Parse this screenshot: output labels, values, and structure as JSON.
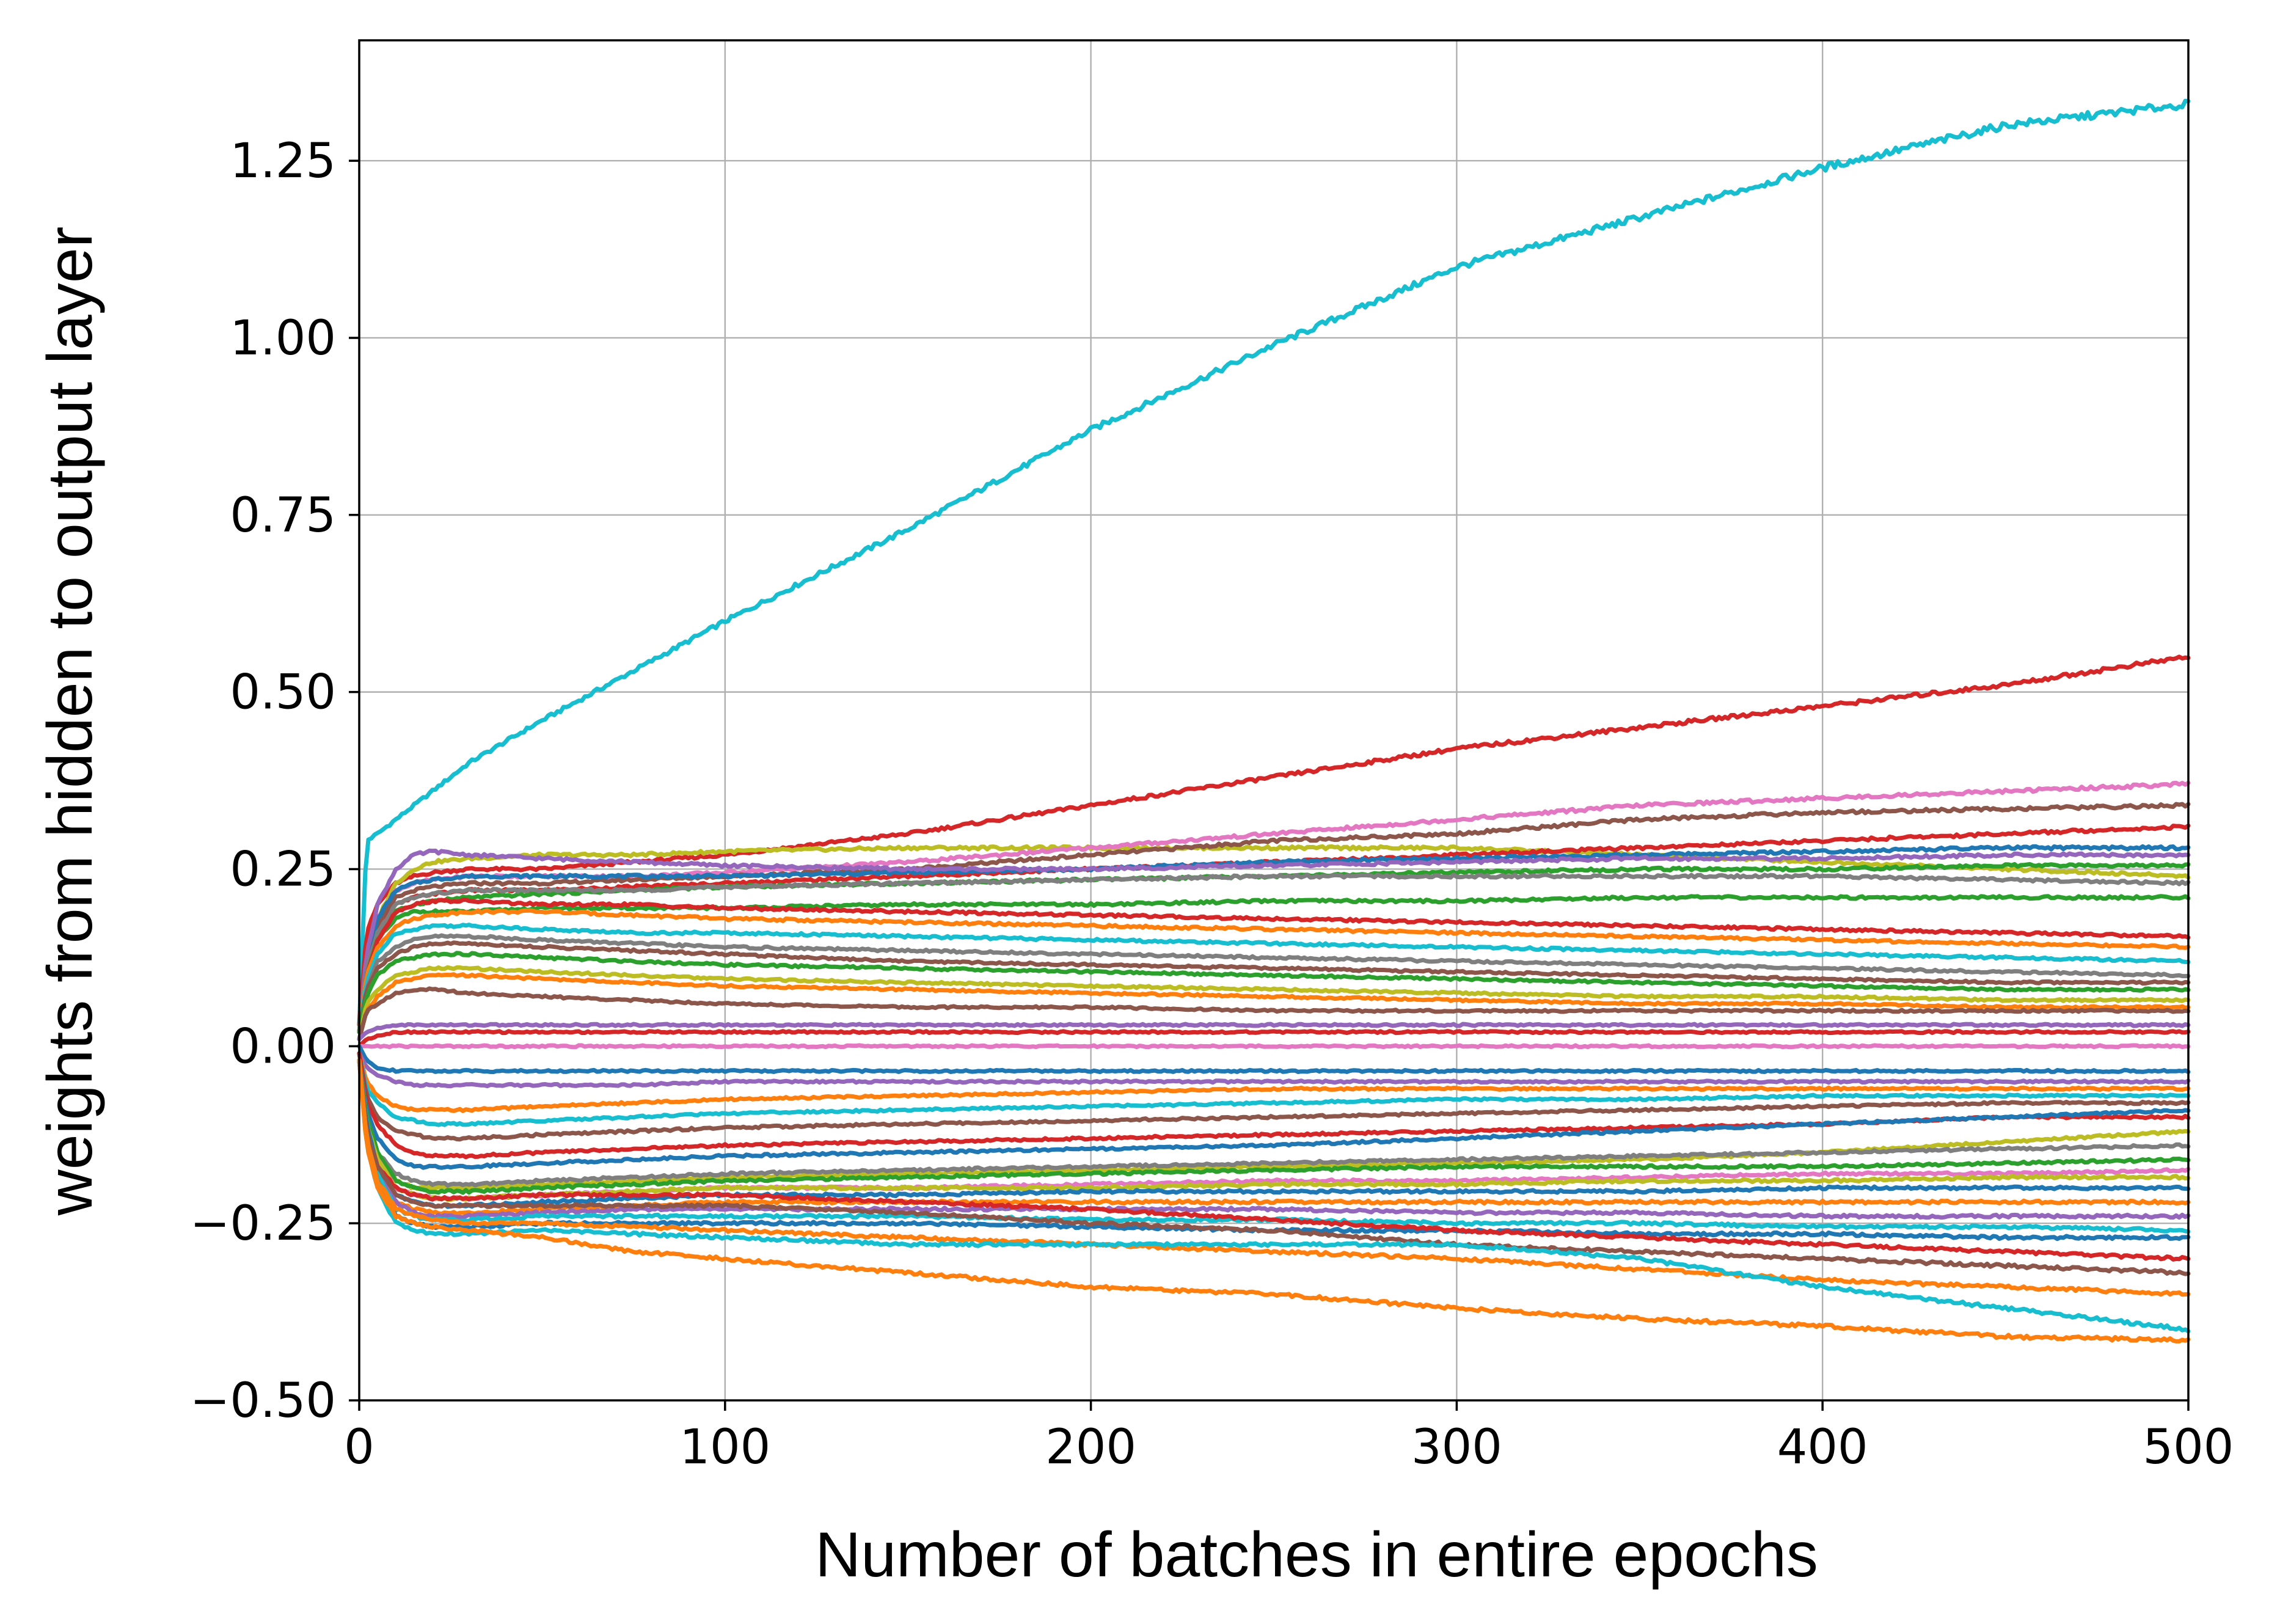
{
  "chart_data": {
    "type": "line",
    "title": "",
    "xlabel": "Number of batches in entire epochs",
    "ylabel": "weights from hidden to output layer",
    "xlim": [
      0,
      500
    ],
    "ylim": [
      -0.5,
      1.42
    ],
    "xticks": [
      0,
      100,
      200,
      300,
      400,
      500
    ],
    "xtick_labels": [
      "0",
      "100",
      "200",
      "300",
      "400",
      "500"
    ],
    "yticks": [
      -0.5,
      -0.25,
      0.0,
      0.25,
      0.5,
      0.75,
      1.0,
      1.25
    ],
    "ytick_labels": [
      "−0.50",
      "−0.25",
      "0.00",
      "0.25",
      "0.50",
      "0.75",
      "1.00",
      "1.25"
    ],
    "grid": true,
    "legend": "none",
    "x": [
      0,
      2,
      5,
      10,
      15,
      20,
      30,
      50,
      75,
      100,
      150,
      200,
      250,
      300,
      350,
      400,
      450,
      500
    ],
    "series": [
      {
        "color": "#17becf",
        "values": [
          0.03,
          0.29,
          0.3,
          0.32,
          0.34,
          0.36,
          0.4,
          0.46,
          0.53,
          0.6,
          0.73,
          0.87,
          0.99,
          1.1,
          1.17,
          1.24,
          1.3,
          1.33
        ]
      },
      {
        "color": "#d62728",
        "values": [
          0.03,
          0.16,
          0.2,
          0.23,
          0.24,
          0.245,
          0.25,
          0.25,
          0.26,
          0.27,
          0.3,
          0.34,
          0.38,
          0.42,
          0.45,
          0.48,
          0.51,
          0.55
        ]
      },
      {
        "color": "#bcbd22",
        "values": [
          0.02,
          0.12,
          0.18,
          0.23,
          0.25,
          0.26,
          0.265,
          0.27,
          0.27,
          0.275,
          0.28,
          0.28,
          0.28,
          0.28,
          0.27,
          0.26,
          0.25,
          0.24
        ]
      },
      {
        "color": "#e377c2",
        "values": [
          0.02,
          0.12,
          0.18,
          0.22,
          0.23,
          0.235,
          0.24,
          0.24,
          0.24,
          0.245,
          0.26,
          0.28,
          0.3,
          0.32,
          0.34,
          0.35,
          0.36,
          0.37
        ]
      },
      {
        "color": "#8c564b",
        "values": [
          0.02,
          0.11,
          0.17,
          0.21,
          0.22,
          0.225,
          0.23,
          0.23,
          0.235,
          0.24,
          0.25,
          0.27,
          0.29,
          0.3,
          0.32,
          0.33,
          0.335,
          0.34
        ]
      },
      {
        "color": "#d62728",
        "values": [
          0.02,
          0.11,
          0.16,
          0.2,
          0.21,
          0.215,
          0.22,
          0.22,
          0.225,
          0.23,
          0.24,
          0.25,
          0.26,
          0.27,
          0.28,
          0.29,
          0.3,
          0.31
        ]
      },
      {
        "color": "#1f77b4",
        "values": [
          0.02,
          0.12,
          0.18,
          0.22,
          0.23,
          0.235,
          0.24,
          0.24,
          0.24,
          0.24,
          0.245,
          0.25,
          0.26,
          0.265,
          0.27,
          0.275,
          0.28,
          0.28
        ]
      },
      {
        "color": "#9467bd",
        "values": [
          0.02,
          0.13,
          0.2,
          0.25,
          0.27,
          0.275,
          0.27,
          0.265,
          0.26,
          0.255,
          0.25,
          0.25,
          0.255,
          0.26,
          0.265,
          0.265,
          0.27,
          0.27
        ]
      },
      {
        "color": "#2ca02c",
        "values": [
          0.02,
          0.11,
          0.16,
          0.19,
          0.2,
          0.205,
          0.21,
          0.215,
          0.22,
          0.225,
          0.23,
          0.235,
          0.24,
          0.245,
          0.25,
          0.25,
          0.255,
          0.255
        ]
      },
      {
        "color": "#7f7f7f",
        "values": [
          0.02,
          0.11,
          0.16,
          0.2,
          0.21,
          0.215,
          0.22,
          0.22,
          0.22,
          0.225,
          0.23,
          0.235,
          0.24,
          0.24,
          0.24,
          0.24,
          0.235,
          0.23
        ]
      },
      {
        "color": "#2ca02c",
        "values": [
          0.02,
          0.1,
          0.15,
          0.18,
          0.19,
          0.19,
          0.19,
          0.195,
          0.195,
          0.195,
          0.2,
          0.2,
          0.205,
          0.205,
          0.21,
          0.21,
          0.21,
          0.21
        ]
      },
      {
        "color": "#d62728",
        "values": [
          0.02,
          0.1,
          0.15,
          0.19,
          0.2,
          0.205,
          0.205,
          0.2,
          0.2,
          0.195,
          0.19,
          0.185,
          0.18,
          0.175,
          0.17,
          0.165,
          0.16,
          0.155
        ]
      },
      {
        "color": "#ff7f0e",
        "values": [
          0.02,
          0.1,
          0.14,
          0.17,
          0.18,
          0.185,
          0.19,
          0.19,
          0.185,
          0.18,
          0.175,
          0.17,
          0.165,
          0.16,
          0.155,
          0.15,
          0.145,
          0.14
        ]
      },
      {
        "color": "#17becf",
        "values": [
          0.02,
          0.09,
          0.13,
          0.16,
          0.165,
          0.17,
          0.17,
          0.165,
          0.16,
          0.16,
          0.155,
          0.15,
          0.145,
          0.14,
          0.135,
          0.13,
          0.125,
          0.12
        ]
      },
      {
        "color": "#7f7f7f",
        "values": [
          0.02,
          0.08,
          0.12,
          0.14,
          0.15,
          0.155,
          0.155,
          0.15,
          0.145,
          0.14,
          0.135,
          0.13,
          0.125,
          0.12,
          0.115,
          0.11,
          0.105,
          0.1
        ]
      },
      {
        "color": "#8c564b",
        "values": [
          0.02,
          0.08,
          0.11,
          0.13,
          0.14,
          0.145,
          0.145,
          0.14,
          0.135,
          0.13,
          0.12,
          0.115,
          0.11,
          0.105,
          0.1,
          0.095,
          0.09,
          0.09
        ]
      },
      {
        "color": "#2ca02c",
        "values": [
          0.02,
          0.07,
          0.1,
          0.12,
          0.125,
          0.13,
          0.13,
          0.125,
          0.12,
          0.115,
          0.11,
          0.105,
          0.1,
          0.095,
          0.09,
          0.085,
          0.08,
          0.08
        ]
      },
      {
        "color": "#bcbd22",
        "values": [
          0.01,
          0.06,
          0.08,
          0.1,
          0.105,
          0.11,
          0.11,
          0.105,
          0.1,
          0.095,
          0.09,
          0.085,
          0.08,
          0.075,
          0.07,
          0.07,
          0.065,
          0.065
        ]
      },
      {
        "color": "#ff7f0e",
        "values": [
          0.01,
          0.05,
          0.07,
          0.09,
          0.095,
          0.1,
          0.1,
          0.095,
          0.09,
          0.085,
          0.08,
          0.075,
          0.07,
          0.065,
          0.06,
          0.06,
          0.055,
          0.055
        ]
      },
      {
        "color": "#8c564b",
        "values": [
          0.01,
          0.05,
          0.06,
          0.075,
          0.08,
          0.08,
          0.075,
          0.07,
          0.065,
          0.06,
          0.055,
          0.055,
          0.05,
          0.05,
          0.05,
          0.05,
          0.05,
          0.05
        ]
      },
      {
        "color": "#9467bd",
        "values": [
          0.01,
          0.02,
          0.025,
          0.03,
          0.03,
          0.03,
          0.03,
          0.03,
          0.03,
          0.03,
          0.03,
          0.03,
          0.03,
          0.03,
          0.03,
          0.03,
          0.03,
          0.03
        ]
      },
      {
        "color": "#d62728",
        "values": [
          0.0,
          0.01,
          0.015,
          0.02,
          0.02,
          0.02,
          0.02,
          0.02,
          0.02,
          0.02,
          0.02,
          0.02,
          0.02,
          0.02,
          0.02,
          0.02,
          0.02,
          0.02
        ]
      },
      {
        "color": "#e377c2",
        "values": [
          0.0,
          0.0,
          0.0,
          0.0,
          0.0,
          0.0,
          0.0,
          0.0,
          0.0,
          0.0,
          0.0,
          0.0,
          0.0,
          0.0,
          0.0,
          0.0,
          0.0,
          0.0
        ]
      },
      {
        "color": "#1f77b4",
        "values": [
          0.0,
          -0.02,
          -0.03,
          -0.035,
          -0.035,
          -0.035,
          -0.035,
          -0.035,
          -0.035,
          -0.035,
          -0.035,
          -0.035,
          -0.035,
          -0.035,
          -0.035,
          -0.035,
          -0.035,
          -0.035
        ]
      },
      {
        "color": "#9467bd",
        "values": [
          -0.01,
          -0.03,
          -0.04,
          -0.05,
          -0.055,
          -0.055,
          -0.055,
          -0.055,
          -0.055,
          -0.05,
          -0.05,
          -0.05,
          -0.05,
          -0.05,
          -0.05,
          -0.05,
          -0.05,
          -0.05
        ]
      },
      {
        "color": "#ff7f0e",
        "values": [
          -0.01,
          -0.05,
          -0.07,
          -0.085,
          -0.09,
          -0.09,
          -0.09,
          -0.085,
          -0.08,
          -0.075,
          -0.07,
          -0.065,
          -0.06,
          -0.06,
          -0.06,
          -0.06,
          -0.06,
          -0.06
        ]
      },
      {
        "color": "#17becf",
        "values": [
          -0.01,
          -0.06,
          -0.08,
          -0.1,
          -0.105,
          -0.11,
          -0.11,
          -0.105,
          -0.1,
          -0.095,
          -0.09,
          -0.085,
          -0.08,
          -0.075,
          -0.075,
          -0.07,
          -0.07,
          -0.07
        ]
      },
      {
        "color": "#8c564b",
        "values": [
          -0.01,
          -0.07,
          -0.1,
          -0.12,
          -0.125,
          -0.13,
          -0.13,
          -0.125,
          -0.12,
          -0.115,
          -0.11,
          -0.105,
          -0.1,
          -0.095,
          -0.09,
          -0.085,
          -0.08,
          -0.08
        ]
      },
      {
        "color": "#d62728",
        "values": [
          -0.01,
          -0.08,
          -0.11,
          -0.14,
          -0.15,
          -0.155,
          -0.155,
          -0.15,
          -0.145,
          -0.14,
          -0.135,
          -0.13,
          -0.125,
          -0.12,
          -0.115,
          -0.11,
          -0.1,
          -0.1
        ]
      },
      {
        "color": "#1f77b4",
        "values": [
          -0.02,
          -0.09,
          -0.13,
          -0.16,
          -0.17,
          -0.17,
          -0.17,
          -0.165,
          -0.16,
          -0.155,
          -0.15,
          -0.145,
          -0.14,
          -0.13,
          -0.12,
          -0.11,
          -0.1,
          -0.09
        ]
      },
      {
        "color": "#bcbd22",
        "values": [
          -0.02,
          -0.1,
          -0.15,
          -0.19,
          -0.2,
          -0.2,
          -0.2,
          -0.195,
          -0.19,
          -0.185,
          -0.18,
          -0.175,
          -0.17,
          -0.165,
          -0.16,
          -0.15,
          -0.135,
          -0.12
        ]
      },
      {
        "color": "#7f7f7f",
        "values": [
          -0.02,
          -0.1,
          -0.15,
          -0.18,
          -0.19,
          -0.195,
          -0.195,
          -0.19,
          -0.185,
          -0.18,
          -0.175,
          -0.17,
          -0.165,
          -0.16,
          -0.155,
          -0.15,
          -0.145,
          -0.14
        ]
      },
      {
        "color": "#2ca02c",
        "values": [
          -0.02,
          -0.1,
          -0.15,
          -0.19,
          -0.2,
          -0.205,
          -0.205,
          -0.2,
          -0.195,
          -0.19,
          -0.185,
          -0.18,
          -0.175,
          -0.17,
          -0.17,
          -0.17,
          -0.165,
          -0.16
        ]
      },
      {
        "color": "#e377c2",
        "values": [
          -0.02,
          -0.11,
          -0.16,
          -0.2,
          -0.21,
          -0.215,
          -0.215,
          -0.21,
          -0.205,
          -0.2,
          -0.2,
          -0.195,
          -0.19,
          -0.19,
          -0.185,
          -0.18,
          -0.18,
          -0.175
        ]
      },
      {
        "color": "#bcbd22",
        "values": [
          -0.02,
          -0.11,
          -0.16,
          -0.2,
          -0.21,
          -0.215,
          -0.215,
          -0.21,
          -0.205,
          -0.2,
          -0.2,
          -0.2,
          -0.195,
          -0.195,
          -0.19,
          -0.19,
          -0.185,
          -0.185
        ]
      },
      {
        "color": "#1f77b4",
        "values": [
          -0.02,
          -0.11,
          -0.17,
          -0.21,
          -0.22,
          -0.225,
          -0.225,
          -0.22,
          -0.215,
          -0.21,
          -0.21,
          -0.205,
          -0.205,
          -0.205,
          -0.205,
          -0.2,
          -0.2,
          -0.2
        ]
      },
      {
        "color": "#ff7f0e",
        "values": [
          -0.02,
          -0.12,
          -0.18,
          -0.22,
          -0.23,
          -0.235,
          -0.235,
          -0.23,
          -0.225,
          -0.22,
          -0.22,
          -0.22,
          -0.22,
          -0.22,
          -0.22,
          -0.22,
          -0.22,
          -0.22
        ]
      },
      {
        "color": "#9467bd",
        "values": [
          -0.02,
          -0.12,
          -0.18,
          -0.22,
          -0.235,
          -0.24,
          -0.24,
          -0.235,
          -0.23,
          -0.23,
          -0.23,
          -0.23,
          -0.23,
          -0.235,
          -0.235,
          -0.24,
          -0.24,
          -0.24
        ]
      },
      {
        "color": "#17becf",
        "values": [
          -0.02,
          -0.12,
          -0.18,
          -0.23,
          -0.24,
          -0.245,
          -0.245,
          -0.24,
          -0.24,
          -0.24,
          -0.24,
          -0.245,
          -0.245,
          -0.25,
          -0.25,
          -0.255,
          -0.255,
          -0.26
        ]
      },
      {
        "color": "#1f77b4",
        "values": [
          -0.02,
          -0.13,
          -0.19,
          -0.24,
          -0.25,
          -0.255,
          -0.255,
          -0.25,
          -0.25,
          -0.25,
          -0.25,
          -0.255,
          -0.26,
          -0.26,
          -0.265,
          -0.265,
          -0.27,
          -0.27
        ]
      },
      {
        "color": "#d62728",
        "values": [
          -0.02,
          -0.12,
          -0.17,
          -0.2,
          -0.21,
          -0.215,
          -0.215,
          -0.21,
          -0.21,
          -0.21,
          -0.22,
          -0.23,
          -0.245,
          -0.26,
          -0.27,
          -0.28,
          -0.29,
          -0.3
        ]
      },
      {
        "color": "#8c564b",
        "values": [
          -0.02,
          -0.12,
          -0.17,
          -0.21,
          -0.22,
          -0.225,
          -0.225,
          -0.225,
          -0.225,
          -0.225,
          -0.235,
          -0.25,
          -0.26,
          -0.28,
          -0.29,
          -0.3,
          -0.31,
          -0.32
        ]
      },
      {
        "color": "#ff7f0e",
        "values": [
          -0.02,
          -0.13,
          -0.19,
          -0.23,
          -0.24,
          -0.245,
          -0.25,
          -0.25,
          -0.255,
          -0.26,
          -0.27,
          -0.28,
          -0.29,
          -0.3,
          -0.315,
          -0.33,
          -0.34,
          -0.35
        ]
      },
      {
        "color": "#17becf",
        "values": [
          -0.02,
          -0.14,
          -0.2,
          -0.25,
          -0.26,
          -0.265,
          -0.265,
          -0.26,
          -0.265,
          -0.27,
          -0.28,
          -0.28,
          -0.28,
          -0.28,
          -0.3,
          -0.34,
          -0.37,
          -0.4
        ]
      },
      {
        "color": "#ff7f0e",
        "values": [
          -0.02,
          -0.14,
          -0.2,
          -0.24,
          -0.25,
          -0.255,
          -0.26,
          -0.27,
          -0.29,
          -0.3,
          -0.32,
          -0.34,
          -0.35,
          -0.37,
          -0.385,
          -0.395,
          -0.41,
          -0.415
        ]
      }
    ]
  }
}
